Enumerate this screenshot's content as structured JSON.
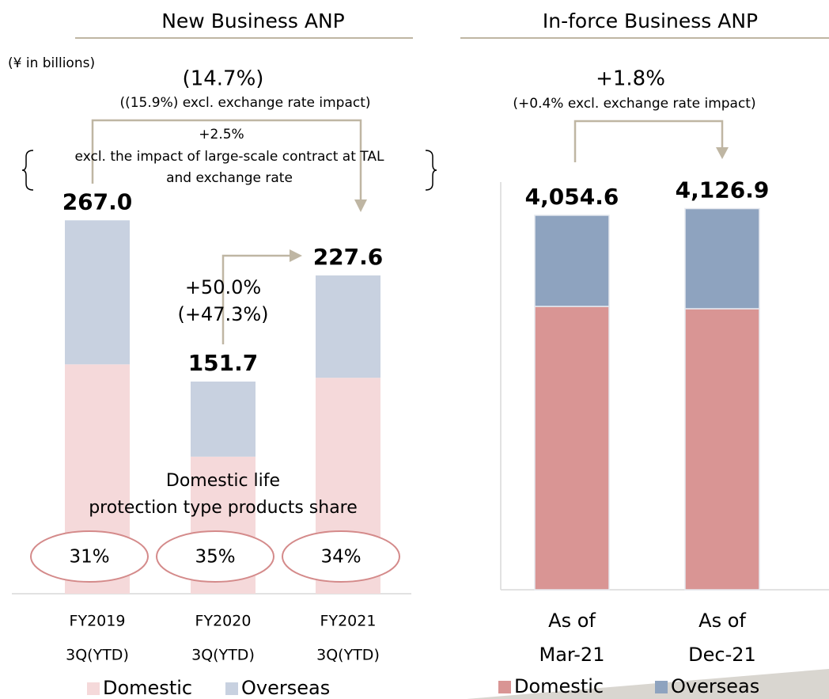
{
  "chart_data": [
    {
      "type": "bar",
      "stacked": true,
      "title": "New Business ANP",
      "unit_label": "(¥ in billions)",
      "categories": [
        [
          "FY2019",
          "3Q(YTD)"
        ],
        [
          "FY2020",
          "3Q(YTD)"
        ],
        [
          "FY2021",
          "3Q(YTD)"
        ]
      ],
      "series": [
        {
          "name": "Domestic",
          "color": "#f5d9da",
          "values": [
            164,
            98,
            154.4
          ]
        },
        {
          "name": "Overseas",
          "color": "#c8d1e0",
          "values": [
            103,
            53.7,
            73.2
          ]
        }
      ],
      "totals": [
        267,
        151.7,
        227.6
      ],
      "total_labels": [
        "267.0",
        "151.7",
        "227.6"
      ],
      "ylim": [
        0,
        300
      ],
      "annotations": [
        "(14.7%)",
        "((15.9%)  excl. exchange rate impact)",
        "+2.5%",
        "excl. the impact of large-scale contract at TAL",
        "and exchange rate",
        "+50.0%",
        "(+47.3%)"
      ],
      "share_title": [
        "Domestic life",
        "protection type products share"
      ],
      "shares": [
        31,
        35,
        34
      ],
      "share_labels": [
        "31%",
        "35%",
        "34%"
      ]
    },
    {
      "type": "bar",
      "stacked": true,
      "title": "In-force Business ANP",
      "categories": [
        [
          "As of",
          "Mar-21"
        ],
        [
          "As of",
          "Dec-21"
        ]
      ],
      "series": [
        {
          "name": "Domestic",
          "color": "#d99594",
          "values": [
            3068,
            3043
          ]
        },
        {
          "name": "Overseas",
          "color": "#8ea3bf",
          "values": [
            986.6,
            1083.9
          ]
        }
      ],
      "totals": [
        4054.6,
        4126.9
      ],
      "total_labels": [
        "4,054.6",
        "4,126.9"
      ],
      "ylim": [
        0,
        4500
      ],
      "annotations": [
        "+1.8%",
        "(+0.4%  excl. exchange rate impact)"
      ]
    }
  ]
}
